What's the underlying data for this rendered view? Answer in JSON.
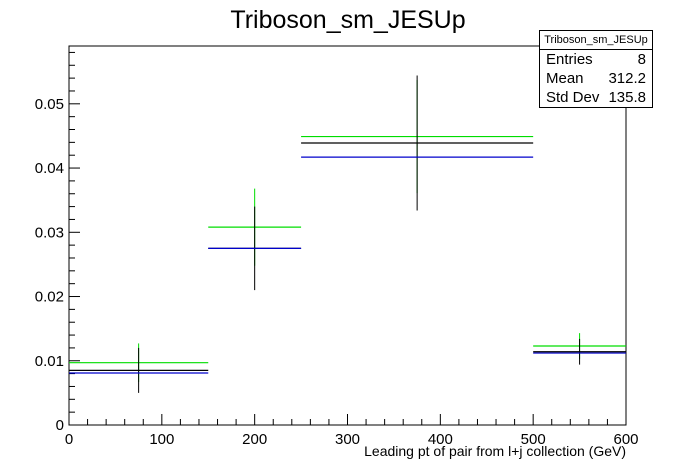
{
  "title": "Triboson_sm_JESUp",
  "stats": {
    "name": "Triboson_sm_JESUp",
    "rows": [
      {
        "label": "Entries",
        "value": "8"
      },
      {
        "label": "Mean",
        "value": "312.2"
      },
      {
        "label": "Std Dev",
        "value": "135.8"
      }
    ]
  },
  "chart_data": {
    "type": "scatter",
    "title": "Triboson_sm_JESUp",
    "xlabel": "Leading pt of pair from l+j collection (GeV)",
    "ylabel": "",
    "xlim": [
      0,
      600
    ],
    "ylim": [
      0,
      0.059
    ],
    "xticks": [
      0,
      100,
      200,
      300,
      400,
      500,
      600
    ],
    "yticks": [
      0,
      0.01,
      0.02,
      0.03,
      0.04,
      0.05
    ],
    "ytick_labels": [
      "0",
      "0.01",
      "0.02",
      "0.03",
      "0.04",
      "0.05"
    ],
    "grid": false,
    "bins": [
      [
        0,
        150
      ],
      [
        150,
        250
      ],
      [
        250,
        500
      ],
      [
        500,
        600
      ]
    ],
    "series": [
      {
        "color": "#00dd00",
        "values": [
          0.0097,
          0.0308,
          0.0449,
          0.0123
        ],
        "errors": [
          0.003,
          0.006,
          0.0088,
          0.002
        ]
      },
      {
        "color": "#000000",
        "values": [
          0.0085,
          0.0275,
          0.0439,
          0.0114
        ],
        "errors": [
          0.0035,
          0.0065,
          0.0105,
          0.002
        ]
      },
      {
        "color": "#0000cc",
        "values": [
          0.0081,
          0.0275,
          0.0417,
          0.0112
        ],
        "errors": [
          0,
          0,
          0,
          0
        ]
      }
    ]
  }
}
